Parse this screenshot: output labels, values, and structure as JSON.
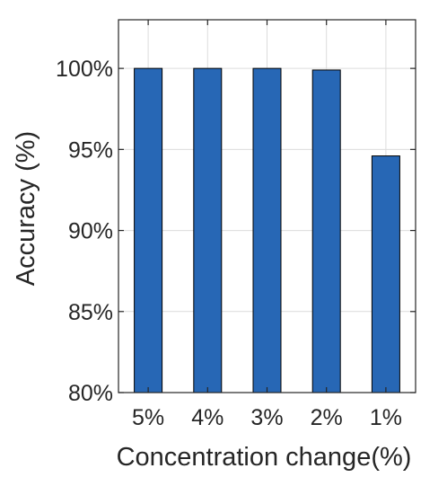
{
  "chart_data": {
    "type": "bar",
    "categories": [
      "5%",
      "4%",
      "3%",
      "2%",
      "1%"
    ],
    "values": [
      100,
      100,
      100,
      99.9,
      94.6
    ],
    "xlabel": "Concentration change(%)",
    "ylabel": "Accuracy (%)",
    "ylim": [
      80,
      103
    ],
    "yticks": [
      80,
      85,
      90,
      95,
      100
    ],
    "ytick_labels": [
      "80%",
      "85%",
      "90%",
      "95%",
      "100%"
    ],
    "grid": true,
    "bar_color": "#2767b5",
    "bar_edge_color": "#000000",
    "grid_color": "#dcdcdc",
    "axis_color": "#262626"
  }
}
